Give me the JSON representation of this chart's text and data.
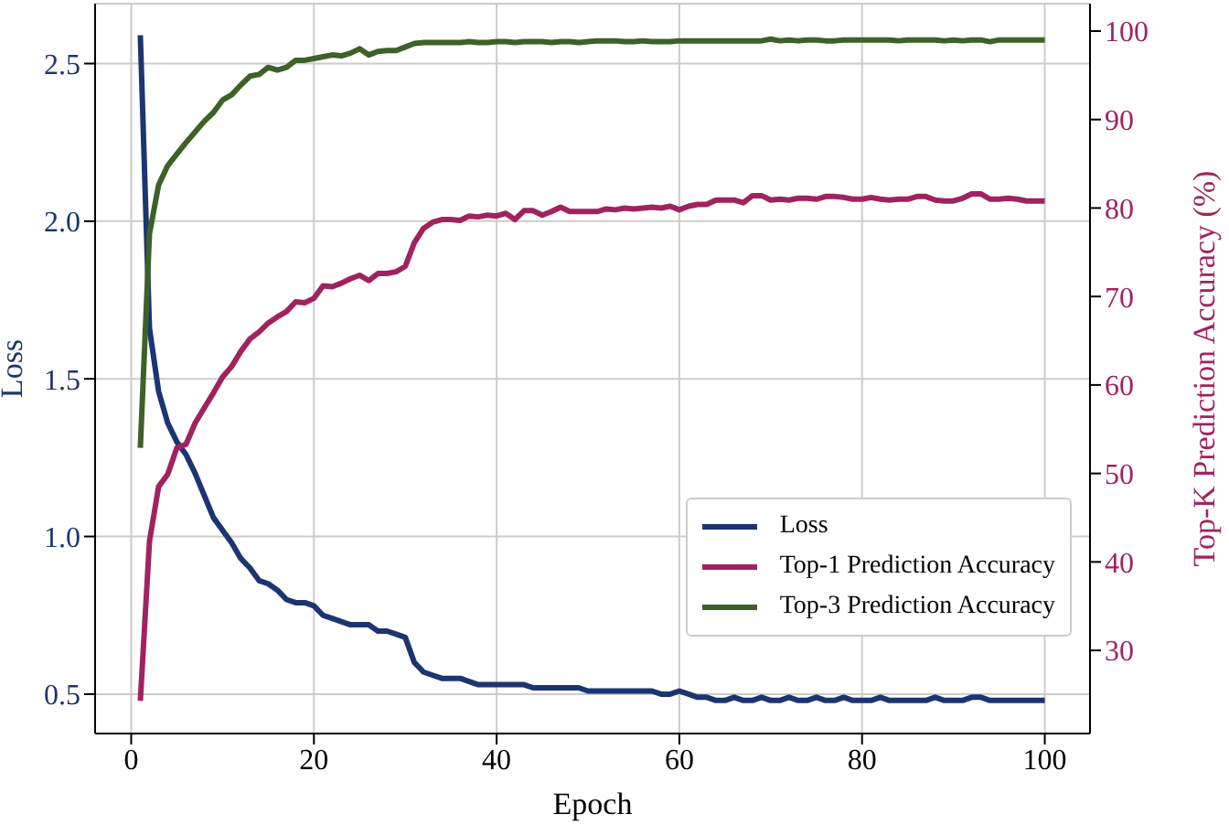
{
  "chart_data": {
    "type": "line",
    "xlabel": "Epoch",
    "ylabel": "Loss",
    "y2label": "Top-K Prediction Accuracy (%)",
    "x": [
      1,
      2,
      3,
      4,
      5,
      6,
      7,
      8,
      9,
      10,
      11,
      12,
      13,
      14,
      15,
      16,
      17,
      18,
      19,
      20,
      21,
      22,
      23,
      24,
      25,
      26,
      27,
      28,
      29,
      30,
      31,
      32,
      33,
      34,
      35,
      36,
      37,
      38,
      39,
      40,
      41,
      42,
      43,
      44,
      45,
      46,
      47,
      48,
      49,
      50,
      51,
      52,
      53,
      54,
      55,
      56,
      57,
      58,
      59,
      60,
      61,
      62,
      63,
      64,
      65,
      66,
      67,
      68,
      69,
      70,
      71,
      72,
      73,
      74,
      75,
      76,
      77,
      78,
      79,
      80,
      81,
      82,
      83,
      84,
      85,
      86,
      87,
      88,
      89,
      90,
      91,
      92,
      93,
      94,
      95,
      96,
      97,
      98,
      99,
      100
    ],
    "series": [
      {
        "name": "Loss",
        "color": "#1c3571",
        "values": [
          2.59,
          1.66,
          1.46,
          1.36,
          1.3,
          1.26,
          1.2,
          1.13,
          1.06,
          1.02,
          0.98,
          0.93,
          0.9,
          0.86,
          0.85,
          0.83,
          0.8,
          0.79,
          0.79,
          0.78,
          0.75,
          0.74,
          0.73,
          0.72,
          0.72,
          0.72,
          0.7,
          0.7,
          0.69,
          0.68,
          0.6,
          0.57,
          0.56,
          0.55,
          0.55,
          0.55,
          0.54,
          0.53,
          0.53,
          0.53,
          0.53,
          0.53,
          0.53,
          0.52,
          0.52,
          0.52,
          0.52,
          0.52,
          0.52,
          0.51,
          0.51,
          0.51,
          0.51,
          0.51,
          0.51,
          0.51,
          0.51,
          0.5,
          0.5,
          0.51,
          0.5,
          0.49,
          0.49,
          0.48,
          0.48,
          0.49,
          0.48,
          0.48,
          0.49,
          0.48,
          0.48,
          0.49,
          0.48,
          0.48,
          0.49,
          0.48,
          0.48,
          0.49,
          0.48,
          0.48,
          0.48,
          0.49,
          0.48,
          0.48,
          0.48,
          0.48,
          0.48,
          0.49,
          0.48,
          0.48,
          0.48,
          0.49,
          0.49,
          0.48,
          0.48,
          0.48,
          0.48,
          0.48,
          0.48,
          0.48
        ]
      },
      {
        "name": "Top-1 Prediction Accuracy",
        "color": "#a0235f",
        "axis": "y2",
        "values": [
          24.3,
          42.3,
          48.5,
          49.9,
          52.9,
          53.3,
          55.7,
          57.4,
          59.1,
          60.9,
          62.1,
          63.8,
          65.2,
          66.0,
          67.0,
          67.7,
          68.3,
          69.4,
          69.3,
          69.8,
          71.2,
          71.1,
          71.5,
          72.0,
          72.4,
          71.8,
          72.6,
          72.6,
          72.8,
          73.4,
          76.1,
          77.7,
          78.4,
          78.7,
          78.7,
          78.6,
          79.1,
          79.0,
          79.2,
          79.1,
          79.4,
          78.7,
          79.7,
          79.7,
          79.2,
          79.6,
          80.1,
          79.6,
          79.6,
          79.6,
          79.6,
          79.9,
          79.8,
          80.0,
          79.9,
          80.0,
          80.1,
          80.0,
          80.2,
          79.8,
          80.2,
          80.4,
          80.4,
          80.9,
          80.9,
          80.9,
          80.6,
          81.4,
          81.4,
          80.9,
          81.0,
          80.9,
          81.1,
          81.1,
          81.0,
          81.3,
          81.3,
          81.2,
          81.0,
          81.0,
          81.2,
          81.0,
          80.9,
          81.0,
          81.0,
          81.3,
          81.3,
          80.9,
          80.8,
          80.8,
          81.1,
          81.6,
          81.6,
          81.0,
          81.0,
          81.1,
          81.0,
          80.8,
          80.8,
          80.8
        ]
      },
      {
        "name": "Top-3 Prediction Accuracy",
        "color": "#3d6128",
        "axis": "y2",
        "values": [
          52.9,
          77.1,
          82.6,
          84.8,
          86.1,
          87.4,
          88.6,
          89.8,
          90.8,
          92.2,
          92.8,
          93.9,
          94.9,
          95.1,
          95.9,
          95.6,
          95.9,
          96.7,
          96.7,
          96.9,
          97.1,
          97.3,
          97.2,
          97.5,
          98.0,
          97.3,
          97.7,
          97.8,
          97.8,
          98.2,
          98.6,
          98.7,
          98.7,
          98.7,
          98.7,
          98.7,
          98.8,
          98.7,
          98.7,
          98.8,
          98.8,
          98.7,
          98.8,
          98.8,
          98.8,
          98.7,
          98.8,
          98.8,
          98.7,
          98.8,
          98.9,
          98.9,
          98.9,
          98.8,
          98.8,
          98.9,
          98.8,
          98.8,
          98.8,
          98.9,
          98.9,
          98.9,
          98.9,
          98.9,
          98.9,
          98.9,
          98.9,
          98.9,
          98.9,
          99.1,
          98.9,
          99.0,
          98.9,
          99.0,
          99.0,
          98.9,
          98.9,
          99.0,
          99.0,
          99.0,
          99.0,
          99.0,
          99.0,
          98.9,
          99.0,
          99.0,
          99.0,
          99.0,
          98.9,
          99.0,
          98.9,
          99.0,
          99.0,
          98.8,
          99.0,
          99.0,
          99.0,
          99.0,
          99.0,
          99.0
        ]
      }
    ],
    "xlim": [
      -3.95,
      104.95
    ],
    "xticks": [
      0,
      20,
      40,
      60,
      80,
      100
    ],
    "ylim": [
      0.375,
      2.69
    ],
    "yticks": [
      {
        "value": 0.5,
        "label": "0.5"
      },
      {
        "value": 1,
        "label": "1.0"
      },
      {
        "value": 1.5,
        "label": "1.5"
      },
      {
        "value": 2,
        "label": "2.0"
      },
      {
        "value": 2.5,
        "label": "2.5"
      }
    ],
    "y2lim": [
      20.6,
      103.1
    ],
    "y2ticks": [
      30,
      40,
      50,
      60,
      70,
      80,
      90,
      100
    ],
    "grid": true,
    "legend": "bottom right",
    "marker": "none",
    "line_style": "solid"
  }
}
